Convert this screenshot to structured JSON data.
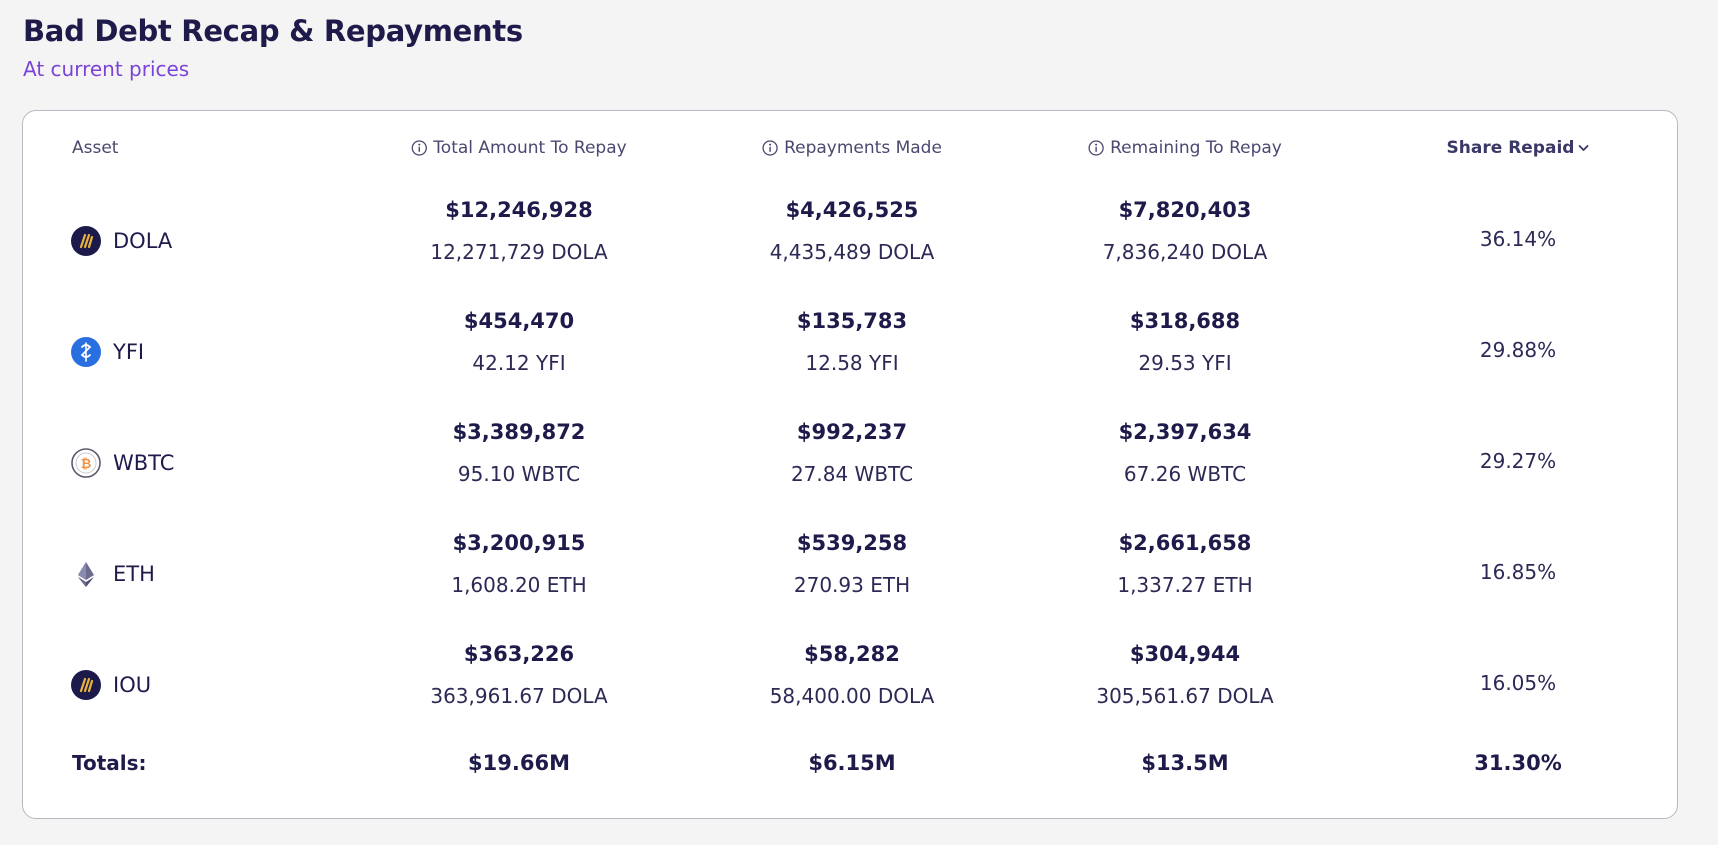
{
  "header": {
    "title": "Bad Debt Recap & Repayments",
    "subtitle": "At current prices"
  },
  "table": {
    "columns": {
      "asset": "Asset",
      "total": "Total Amount To Repay",
      "repaid": "Repayments Made",
      "remaining": "Remaining To Repay",
      "share": "Share Repaid"
    },
    "rows": [
      {
        "asset": "DOLA",
        "icon": "dola-icon",
        "total_usd": "$12,246,928",
        "total_amount": "12,271,729 DOLA",
        "repaid_usd": "$4,426,525",
        "repaid_amount": "4,435,489 DOLA",
        "remaining_usd": "$7,820,403",
        "remaining_amount": "7,836,240 DOLA",
        "share": "36.14%"
      },
      {
        "asset": "YFI",
        "icon": "yfi-icon",
        "total_usd": "$454,470",
        "total_amount": "42.12 YFI",
        "repaid_usd": "$135,783",
        "repaid_amount": "12.58 YFI",
        "remaining_usd": "$318,688",
        "remaining_amount": "29.53 YFI",
        "share": "29.88%"
      },
      {
        "asset": "WBTC",
        "icon": "wbtc-icon",
        "total_usd": "$3,389,872",
        "total_amount": "95.10 WBTC",
        "repaid_usd": "$992,237",
        "repaid_amount": "27.84 WBTC",
        "remaining_usd": "$2,397,634",
        "remaining_amount": "67.26 WBTC",
        "share": "29.27%"
      },
      {
        "asset": "ETH",
        "icon": "eth-icon",
        "total_usd": "$3,200,915",
        "total_amount": "1,608.20 ETH",
        "repaid_usd": "$539,258",
        "repaid_amount": "270.93 ETH",
        "remaining_usd": "$2,661,658",
        "remaining_amount": "1,337.27 ETH",
        "share": "16.85%"
      },
      {
        "asset": "IOU",
        "icon": "dola-icon",
        "total_usd": "$363,226",
        "total_amount": "363,961.67 DOLA",
        "repaid_usd": "$58,282",
        "repaid_amount": "58,400.00 DOLA",
        "remaining_usd": "$304,944",
        "remaining_amount": "305,561.67 DOLA",
        "share": "16.05%"
      }
    ],
    "totals": {
      "label": "Totals:",
      "total": "$19.66M",
      "repaid": "$6.15M",
      "remaining": "$13.5M",
      "share": "31.30%"
    }
  },
  "colors": {
    "text_primary": "#1e1b4b",
    "accent_subtitle": "#7c44d6",
    "background": "#f4f4f4",
    "card": "#ffffff"
  }
}
